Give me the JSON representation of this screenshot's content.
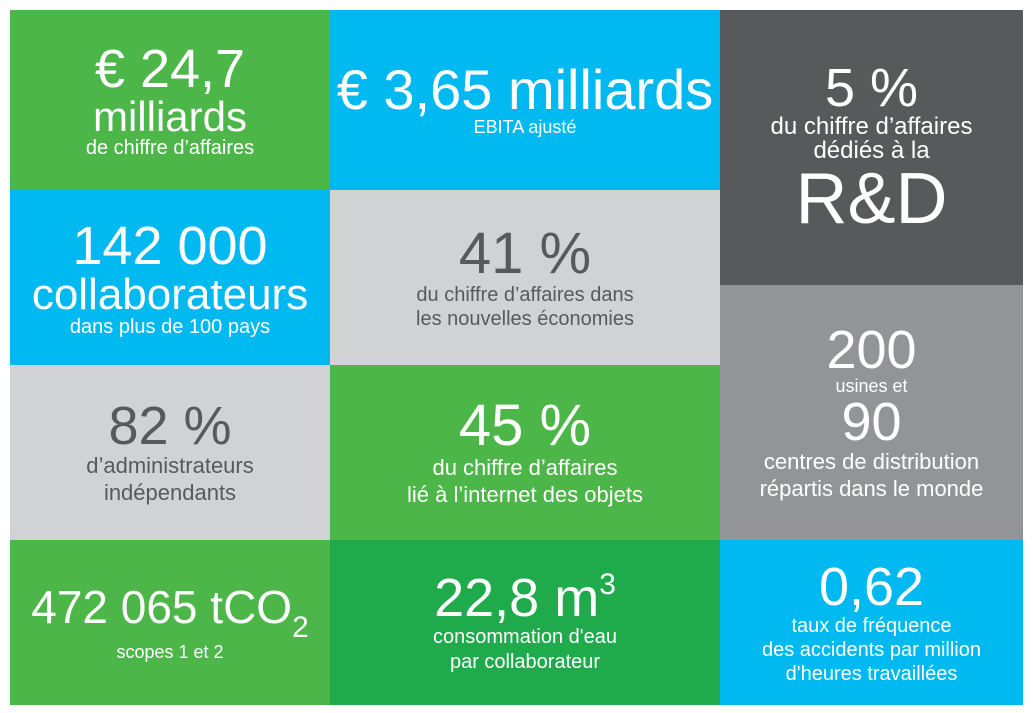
{
  "tiles": [
    {
      "lines": [
        "€ 24,7",
        "milliards",
        "de chiffre d’affaires"
      ]
    },
    {
      "lines": [
        "€ 3,65 milliards",
        "EBITA ajusté"
      ]
    },
    {
      "lines": [
        "5 %",
        "du chiffre d’affaires",
        "dédiés à la",
        "R&D"
      ]
    },
    {
      "lines": [
        "142 000",
        "collaborateurs",
        "dans plus de 100 pays"
      ]
    },
    {
      "lines": [
        "41 %",
        "du chiffre d’affaires dans",
        "les nouvelles économies"
      ]
    },
    {
      "lines": [
        "200",
        "usines et",
        "90",
        "centres de distribution",
        "répartis dans le monde"
      ]
    },
    {
      "lines": [
        "82 %",
        "d’administrateurs",
        "indépendants"
      ]
    },
    {
      "lines": [
        "45 %",
        "du chiffre d’affaires",
        "lié à l’internet des objets"
      ]
    },
    {
      "lines": [
        "472 065 tCO",
        "scopes 1 et 2"
      ],
      "subscript": "2"
    },
    {
      "lines": [
        "22,8 m",
        "consommation d'eau",
        "par collaborateur"
      ],
      "superscript": "3"
    },
    {
      "lines": [
        "0,62",
        "taux de fréquence",
        "des accidents par million",
        "d'heures travaillées"
      ]
    }
  ]
}
